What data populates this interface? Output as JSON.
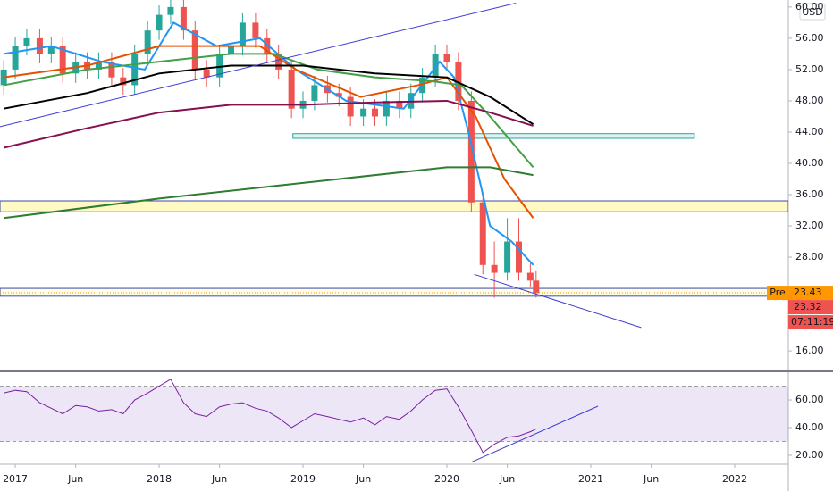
{
  "chart_data": [
    {
      "type": "candlestick",
      "currency": "USD",
      "xlim": [
        2016.894,
        2022.373
      ],
      "ylim": [
        13.5,
        60.9
      ],
      "yticks": [
        {
          "value": 16,
          "label": "16.00"
        },
        {
          "value": 28,
          "label": "28.00"
        },
        {
          "value": 32,
          "label": "32.00"
        },
        {
          "value": 36,
          "label": "36.00"
        },
        {
          "value": 40,
          "label": "40.00"
        },
        {
          "value": 44,
          "label": "44.00"
        },
        {
          "value": 48,
          "label": "48.00"
        },
        {
          "value": 52,
          "label": "52.00"
        },
        {
          "value": 56,
          "label": "56.00"
        },
        {
          "value": 60,
          "label": "60.00"
        }
      ],
      "x": [
        2016.92,
        2017,
        2017.08,
        2017.17,
        2017.25,
        2017.33,
        2017.42,
        2017.5,
        2017.58,
        2017.67,
        2017.75,
        2017.83,
        2017.92,
        2018,
        2018.08,
        2018.17,
        2018.25,
        2018.33,
        2018.42,
        2018.5,
        2018.58,
        2018.67,
        2018.75,
        2018.83,
        2018.92,
        2019,
        2019.08,
        2019.17,
        2019.25,
        2019.33,
        2019.42,
        2019.5,
        2019.58,
        2019.67,
        2019.75,
        2019.83,
        2019.92,
        2020,
        2020.08,
        2020.17,
        2020.25,
        2020.33,
        2020.42,
        2020.5,
        2020.58,
        2020.62
      ],
      "open": [
        50,
        52,
        55,
        56,
        54,
        55,
        51.5,
        53,
        52,
        53,
        51,
        50,
        54,
        57,
        59,
        60,
        57,
        52,
        51,
        54,
        55,
        58,
        56,
        54,
        52,
        47,
        48,
        50,
        49,
        48.5,
        46,
        47,
        46,
        48,
        47,
        49,
        51,
        54,
        53,
        48,
        35,
        27,
        26,
        30,
        26,
        25
      ],
      "high": [
        53.2,
        56.2,
        57.2,
        57.2,
        56.2,
        56.2,
        54.2,
        54.2,
        54.2,
        54.2,
        52.2,
        55.2,
        58.2,
        60.2,
        61,
        61,
        58.2,
        53.2,
        55.2,
        56.2,
        59.2,
        59.2,
        57.2,
        55.2,
        53.2,
        49.2,
        51.2,
        51.2,
        50.2,
        49.7,
        48.2,
        48.2,
        49.2,
        49.2,
        50.2,
        52.2,
        55.2,
        55.2,
        54.2,
        49.2,
        36,
        30,
        33,
        33,
        27.2,
        26.2
      ],
      "low": [
        48.8,
        50.8,
        53.8,
        52.8,
        52.8,
        50.3,
        50.3,
        50.8,
        50.8,
        49.8,
        48.8,
        48.8,
        52.8,
        55.8,
        57.8,
        55.8,
        50.8,
        49.8,
        49.8,
        52.8,
        53.8,
        54.8,
        52.8,
        50.8,
        45.8,
        45.8,
        46.8,
        47.8,
        47.3,
        44.8,
        44.8,
        44.8,
        44.8,
        45.8,
        45.8,
        47.8,
        49.8,
        51.8,
        46.8,
        33.8,
        25.8,
        22.8,
        25,
        25,
        24.2,
        22.8
      ],
      "close": [
        52,
        55,
        56,
        54,
        55,
        51.5,
        53,
        52,
        53,
        51,
        50,
        54,
        57,
        59,
        60,
        57,
        52,
        51,
        54,
        55,
        58,
        56,
        54,
        52,
        47,
        48,
        50,
        49,
        48.5,
        46,
        47,
        46,
        48,
        47,
        49,
        51,
        54,
        53,
        48,
        35,
        27,
        26,
        30,
        26,
        25,
        23.4
      ],
      "up_color": "#26a69a",
      "down_color": "#ef5350",
      "series": [
        {
          "color": "#2196f3",
          "x": [
            2016.92,
            2017.25,
            2017.6,
            2017.9,
            2018.1,
            2018.4,
            2018.7,
            2018.95,
            2019.3,
            2019.7,
            2019.95,
            2020.05,
            2020.15,
            2020.3,
            2020.45,
            2020.6
          ],
          "values": [
            54,
            55,
            53,
            52,
            58,
            55,
            56,
            52,
            48,
            47,
            53,
            51,
            44,
            32,
            30,
            27
          ]
        },
        {
          "color": "#e65100",
          "x": [
            2016.92,
            2017.5,
            2018,
            2018.3,
            2018.7,
            2018.95,
            2019.4,
            2019.8,
            2020,
            2020.2,
            2020.4,
            2020.6
          ],
          "values": [
            51,
            52.5,
            55,
            55,
            55,
            52,
            48.5,
            50,
            51,
            46,
            38,
            33
          ]
        },
        {
          "color": "#43a047",
          "x": [
            2016.92,
            2017.5,
            2018,
            2018.5,
            2018.8,
            2019.1,
            2019.5,
            2019.9,
            2020.1,
            2020.3,
            2020.6
          ],
          "values": [
            50,
            52,
            53,
            54,
            54,
            52,
            51,
            50.5,
            50,
            46,
            39.5
          ]
        },
        {
          "color": "#000000",
          "x": [
            2016.92,
            2017.5,
            2018,
            2018.5,
            2019,
            2019.5,
            2020,
            2020.3,
            2020.6
          ],
          "values": [
            47,
            49,
            51.5,
            52.5,
            52.5,
            51.5,
            51,
            48.5,
            45
          ]
        },
        {
          "color": "#880e4f",
          "x": [
            2016.92,
            2017.5,
            2018,
            2018.5,
            2019,
            2019.5,
            2020,
            2020.3,
            2020.6
          ],
          "values": [
            42,
            44.5,
            46.5,
            47.5,
            47.5,
            47.8,
            48,
            46.5,
            44.8
          ]
        },
        {
          "color": "#2e7d32",
          "x": [
            2016.92,
            2018,
            2019,
            2020,
            2020.3,
            2020.6
          ],
          "values": [
            33,
            35.5,
            37.5,
            39.5,
            39.5,
            38.5
          ]
        }
      ],
      "zones": [
        {
          "from": 33.8,
          "to": 35.2,
          "color": "#fff9c4"
        },
        {
          "from": 23,
          "to": 24,
          "color": "#fffde7"
        },
        {
          "from": 43.2,
          "to": 43.8,
          "x": [
            2018.93,
            2021.72
          ],
          "color": "#e0f2f1"
        }
      ],
      "trendlines": [
        {
          "color": "#3d3dd6",
          "x": [
            2016.894,
            2020.48
          ],
          "values": [
            44.7,
            60.5
          ]
        },
        {
          "color": "#3d3dd6",
          "x": [
            2020.19,
            2021.35
          ],
          "values": [
            25.8,
            19
          ]
        }
      ],
      "last_price": {
        "tag": "Pre",
        "value": 23.43
      },
      "close_price": 23.32,
      "countdown": "07:11:19"
    },
    {
      "type": "line",
      "xlim": [
        2016.894,
        2022.373
      ],
      "ylim": [
        13.5,
        79.4
      ],
      "yticks": [
        {
          "value": 20,
          "label": "20.00"
        },
        {
          "value": 40,
          "label": "40.00"
        },
        {
          "value": 60,
          "label": "60.00"
        }
      ],
      "band": [
        30,
        70
      ],
      "xticks": [
        2017,
        {
          "value": 2017.42,
          "label": "Jun"
        },
        2018,
        {
          "value": 2018.42,
          "label": "Jun"
        },
        2019,
        {
          "value": 2019.42,
          "label": "Jun"
        },
        2020,
        {
          "value": 2020.42,
          "label": "Jun"
        },
        2021,
        {
          "value": 2021.42,
          "label": "Jun"
        },
        2022
      ],
      "series": [
        {
          "color": "#7b1fa2",
          "x": [
            2016.92,
            2017,
            2017.08,
            2017.17,
            2017.25,
            2017.33,
            2017.42,
            2017.5,
            2017.58,
            2017.67,
            2017.75,
            2017.83,
            2017.92,
            2018,
            2018.08,
            2018.17,
            2018.25,
            2018.33,
            2018.42,
            2018.5,
            2018.58,
            2018.67,
            2018.75,
            2018.83,
            2018.92,
            2019,
            2019.08,
            2019.17,
            2019.25,
            2019.33,
            2019.42,
            2019.5,
            2019.58,
            2019.67,
            2019.75,
            2019.83,
            2019.92,
            2020,
            2020.08,
            2020.17,
            2020.25,
            2020.33,
            2020.42,
            2020.5,
            2020.58,
            2020.62
          ],
          "values": [
            65,
            67,
            66,
            58,
            54,
            50,
            56,
            55,
            52,
            53,
            50,
            60,
            65,
            70,
            75,
            58,
            50,
            48,
            55,
            57,
            58,
            54,
            52,
            47,
            40,
            45,
            50,
            48,
            46,
            44,
            47,
            42,
            48,
            46,
            52,
            60,
            67,
            68,
            55,
            38,
            22,
            28,
            33,
            34,
            37,
            39
          ]
        }
      ],
      "trendlines": [
        {
          "color": "#3d3dd6",
          "x": [
            2020.17,
            2021.05
          ],
          "values": [
            15,
            55.5
          ]
        }
      ]
    }
  ]
}
